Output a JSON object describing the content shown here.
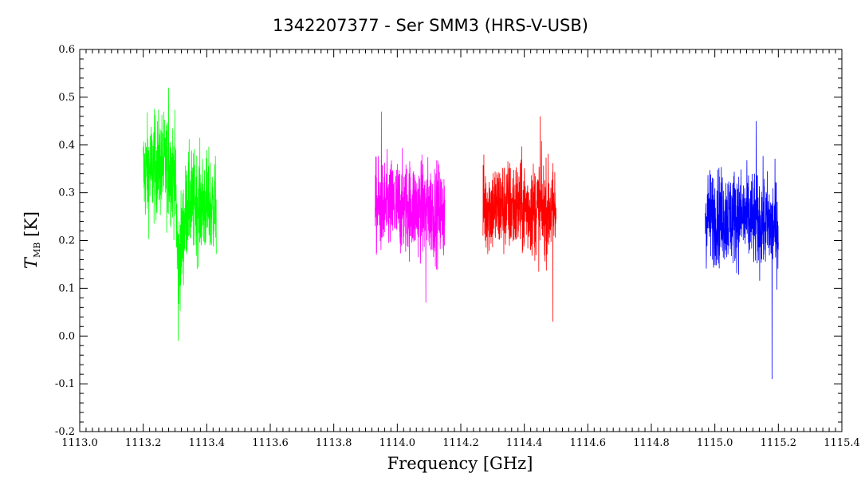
{
  "chart_data": {
    "type": "line",
    "title": "1342207377 - Ser SMM3 (HRS-V-USB)",
    "xlabel": "Frequency [GHz]",
    "ylabel_main": "T",
    "ylabel_sub": "MB",
    "ylabel_unit": " [K]",
    "xlim": [
      1113.0,
      1115.4
    ],
    "ylim": [
      -0.2,
      0.6
    ],
    "x_ticks": [
      "1113.0",
      "1113.2",
      "1113.4",
      "1113.6",
      "1113.8",
      "1114.0",
      "1114.2",
      "1114.4",
      "1114.6",
      "1114.8",
      "1115.0",
      "1115.2",
      "1115.4"
    ],
    "y_ticks": [
      "-0.2",
      "-0.1",
      "0.0",
      "0.1",
      "0.2",
      "0.3",
      "0.4",
      "0.5",
      "0.6"
    ],
    "grid": false,
    "legend": "none",
    "series": [
      {
        "color": "#00ff00",
        "x_range": [
          1113.2,
          1113.43
        ],
        "mean": [
          [
            1113.2,
            0.34
          ],
          [
            1113.26,
            0.36
          ],
          [
            1113.3,
            0.34
          ],
          [
            1113.31,
            0.15
          ],
          [
            1113.34,
            0.28
          ],
          [
            1113.43,
            0.27
          ]
        ],
        "min_val": -0.01,
        "min_at": 1113.31,
        "max_val": 0.52,
        "max_at": 1113.28,
        "noise": 0.055
      },
      {
        "color": "#ff00ff",
        "x_range": [
          1113.93,
          1114.15
        ],
        "mean": [
          [
            1113.93,
            0.27
          ],
          [
            1114.04,
            0.27
          ],
          [
            1114.15,
            0.26
          ]
        ],
        "min_val": 0.07,
        "min_at": 1114.09,
        "max_val": 0.47,
        "max_at": 1113.95,
        "noise": 0.05
      },
      {
        "color": "#ff0000",
        "x_range": [
          1114.27,
          1114.5
        ],
        "mean": [
          [
            1114.27,
            0.27
          ],
          [
            1114.38,
            0.27
          ],
          [
            1114.5,
            0.26
          ]
        ],
        "min_val": 0.03,
        "min_at": 1114.49,
        "max_val": 0.46,
        "max_at": 1114.45,
        "noise": 0.05
      },
      {
        "color": "#0000ff",
        "x_range": [
          1114.97,
          1115.2
        ],
        "mean": [
          [
            1114.97,
            0.25
          ],
          [
            1115.08,
            0.25
          ],
          [
            1115.2,
            0.23
          ]
        ],
        "min_val": -0.09,
        "min_at": 1115.18,
        "max_val": 0.45,
        "max_at": 1115.13,
        "noise": 0.05
      }
    ]
  }
}
